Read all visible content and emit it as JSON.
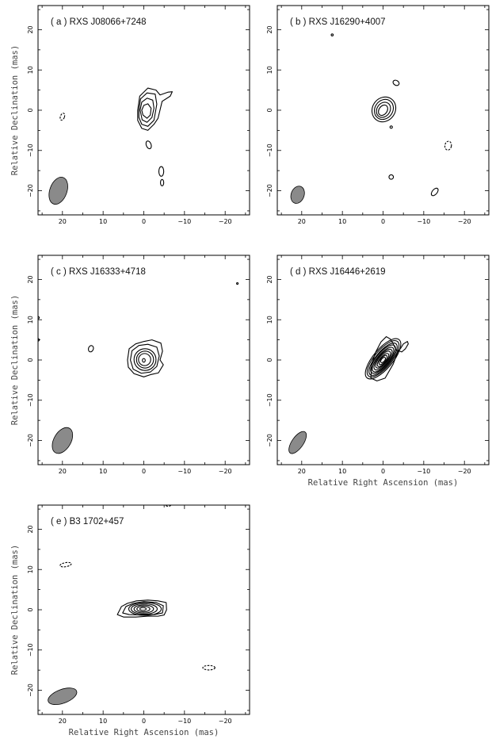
{
  "chart_data": [
    {
      "type": "contour",
      "title": "( a ) RXS J08066+7248",
      "xlabel": "",
      "ylabel": "Relative Declination (mas)",
      "xlim": [
        26,
        -26
      ],
      "ylim": [
        -26,
        26
      ],
      "xticks": [
        20,
        10,
        0,
        -10,
        -20
      ],
      "yticks": [
        -20,
        -10,
        0,
        10,
        20
      ],
      "beam": {
        "x": 21,
        "y": -20,
        "major": 7,
        "minor": 4.2,
        "pa_deg": 20,
        "color": "#8a8a8a"
      },
      "contours": [
        {
          "sign": "pos",
          "points": [
            [
              1.5,
              0
            ],
            [
              1,
              3.5
            ],
            [
              -1,
              5.5
            ],
            [
              -3,
              5
            ],
            [
              -4,
              3.8
            ],
            [
              -6,
              4.5
            ],
            [
              -7,
              4.6
            ],
            [
              -6.5,
              3.5
            ],
            [
              -4.5,
              2.2
            ],
            [
              -3.5,
              -2
            ],
            [
              -2.5,
              -3.5
            ],
            [
              -1,
              -5
            ],
            [
              0.5,
              -4.5
            ],
            [
              1.5,
              -2.5
            ]
          ]
        },
        {
          "sign": "pos",
          "points": [
            [
              1.2,
              0
            ],
            [
              0.8,
              2.8
            ],
            [
              -0.8,
              4.3
            ],
            [
              -2.8,
              4
            ],
            [
              -3.2,
              1.5
            ],
            [
              -2.5,
              -2.5
            ],
            [
              -1,
              -4
            ],
            [
              0.5,
              -3.5
            ],
            [
              1.2,
              -1.8
            ]
          ]
        },
        {
          "sign": "pos",
          "points": [
            [
              0.9,
              0
            ],
            [
              0.5,
              2
            ],
            [
              -0.8,
              3
            ],
            [
              -2.2,
              2.5
            ],
            [
              -2.5,
              0.5
            ],
            [
              -2,
              -1.8
            ],
            [
              -0.8,
              -3
            ],
            [
              0.4,
              -2.4
            ]
          ]
        },
        {
          "sign": "pos",
          "points": [
            [
              0.5,
              0
            ],
            [
              0,
              1.2
            ],
            [
              -1,
              1.6
            ],
            [
              -1.8,
              0.5
            ],
            [
              -1.6,
              -1.2
            ],
            [
              -0.8,
              -2
            ],
            [
              0.2,
              -1.2
            ]
          ]
        },
        {
          "sign": "pos",
          "cx": -1.2,
          "cy": -8.6,
          "rx": 0.6,
          "ry": 1.0,
          "rot": -20
        },
        {
          "sign": "pos",
          "cx": -4.3,
          "cy": -15.2,
          "rx": 0.6,
          "ry": 1.2,
          "rot": 0
        },
        {
          "sign": "pos",
          "cx": -4.5,
          "cy": -18,
          "rx": 0.4,
          "ry": 0.8,
          "rot": 0
        },
        {
          "sign": "neg",
          "cx": 20,
          "cy": -1.6,
          "rx": 0.5,
          "ry": 0.9,
          "rot": 20
        }
      ]
    },
    {
      "type": "contour",
      "title": "( b ) RXS J16290+4007",
      "xlabel": "",
      "ylabel": "",
      "xlim": [
        26,
        -26
      ],
      "ylim": [
        -26,
        26
      ],
      "xticks": [
        20,
        10,
        0,
        -10,
        -20
      ],
      "yticks": [
        -20,
        -10,
        0,
        10,
        20
      ],
      "beam": {
        "x": 21,
        "y": -21,
        "major": 4.4,
        "minor": 3.2,
        "pa_deg": 20,
        "color": "#8a8a8a"
      },
      "contours": [
        {
          "sign": "pos",
          "cx": -0.2,
          "cy": 0.2,
          "rx": 2.8,
          "ry": 3.2,
          "rot": 35
        },
        {
          "sign": "pos",
          "cx": -0.2,
          "cy": 0.2,
          "rx": 2.2,
          "ry": 2.6,
          "rot": 35
        },
        {
          "sign": "pos",
          "cx": -0.1,
          "cy": 0.1,
          "rx": 1.6,
          "ry": 2.0,
          "rot": 35
        },
        {
          "sign": "pos",
          "cx": 0,
          "cy": 0,
          "rx": 1.0,
          "ry": 1.4,
          "rot": 35
        },
        {
          "sign": "pos",
          "cx": -3.2,
          "cy": 6.8,
          "rx": 0.8,
          "ry": 0.6,
          "rot": 30
        },
        {
          "sign": "pos",
          "cx": -2,
          "cy": -4.2,
          "rx": 0.3,
          "ry": 0.3,
          "rot": 0
        },
        {
          "sign": "pos",
          "cx": -2,
          "cy": -16.6,
          "rx": 0.55,
          "ry": 0.55,
          "rot": 0
        },
        {
          "sign": "pos",
          "cx": -12.7,
          "cy": -20.3,
          "rx": 0.6,
          "ry": 1.1,
          "rot": 40
        },
        {
          "sign": "pos",
          "cx": 12.5,
          "cy": 18.7,
          "rx": 0.25,
          "ry": 0.25,
          "rot": 0
        },
        {
          "sign": "neg",
          "cx": -16,
          "cy": -8.8,
          "rx": 0.8,
          "ry": 1.1,
          "rot": 10
        }
      ]
    },
    {
      "type": "contour",
      "title": "( c ) RXS J16333+4718",
      "xlabel": "",
      "ylabel": "Relative Declination (mas)",
      "xlim": [
        26,
        -26
      ],
      "ylim": [
        -26,
        26
      ],
      "xticks": [
        20,
        10,
        0,
        -10,
        -20
      ],
      "yticks": [
        -20,
        -10,
        0,
        10,
        20
      ],
      "beam": {
        "x": 20,
        "y": -20,
        "major": 7,
        "minor": 4.2,
        "pa_deg": 30,
        "color": "#8a8a8a"
      },
      "contours": [
        {
          "sign": "pos",
          "points": [
            [
              4,
              0
            ],
            [
              3.6,
              2.8
            ],
            [
              2,
              4
            ],
            [
              0,
              4.6
            ],
            [
              -2,
              5
            ],
            [
              -4.2,
              4.2
            ],
            [
              -4.6,
              2.2
            ],
            [
              -4,
              0
            ],
            [
              -4.8,
              -1.2
            ],
            [
              -3.6,
              -3.2
            ],
            [
              -1.8,
              -3.6
            ],
            [
              0,
              -4.2
            ],
            [
              2.4,
              -3.4
            ],
            [
              3.8,
              -1.8
            ]
          ]
        },
        {
          "sign": "pos",
          "points": [
            [
              3.3,
              0
            ],
            [
              2.9,
              2.3
            ],
            [
              1.2,
              3.6
            ],
            [
              -1,
              3.9
            ],
            [
              -3.2,
              3.2
            ],
            [
              -3.8,
              1
            ],
            [
              -3.2,
              -1.6
            ],
            [
              -1.6,
              -3
            ],
            [
              0.6,
              -3.3
            ],
            [
              2.6,
              -2.3
            ]
          ]
        },
        {
          "sign": "pos",
          "cx": -0.3,
          "cy": 0.1,
          "rx": 2.7,
          "ry": 2.7,
          "rot": 0
        },
        {
          "sign": "pos",
          "cx": -0.3,
          "cy": 0.1,
          "rx": 2.1,
          "ry": 2.1,
          "rot": 0
        },
        {
          "sign": "pos",
          "cx": -0.2,
          "cy": 0.1,
          "rx": 1.5,
          "ry": 1.5,
          "rot": 0
        },
        {
          "sign": "pos",
          "cx": 0,
          "cy": -0.1,
          "rx": 0.35,
          "ry": 0.45,
          "rot": 0
        },
        {
          "sign": "pos",
          "cx": 13,
          "cy": 2.8,
          "rx": 0.6,
          "ry": 0.8,
          "rot": 20
        },
        {
          "sign": "pos",
          "cx": -23,
          "cy": 19,
          "rx": 0.2,
          "ry": 0.2,
          "rot": 0
        },
        {
          "sign": "pos",
          "cx": 26,
          "cy": 10.5,
          "rx": 0.3,
          "ry": 0.3,
          "rot": 0
        },
        {
          "sign": "pos",
          "cx": 26,
          "cy": 5,
          "rx": 0.3,
          "ry": 0.3,
          "rot": 0
        }
      ]
    },
    {
      "type": "contour",
      "title": "( d ) RXS J16446+2619",
      "xlabel": "Relative Right Ascension (mas)",
      "ylabel": "",
      "xlim": [
        26,
        -26
      ],
      "ylim": [
        -26,
        26
      ],
      "xticks": [
        20,
        10,
        0,
        -10,
        -20
      ],
      "yticks": [
        -20,
        -10,
        0,
        10,
        20
      ],
      "beam": {
        "x": 21,
        "y": -20.5,
        "major": 6.4,
        "minor": 2.8,
        "pa_deg": 35,
        "color": "#8a8a8a"
      },
      "contours": [
        {
          "sign": "pos",
          "points": [
            [
              3,
              -4.5
            ],
            [
              1.5,
              -5.2
            ],
            [
              -0.5,
              -4.5
            ],
            [
              -2.5,
              -1
            ],
            [
              -3.6,
              2
            ],
            [
              -4.4,
              3
            ],
            [
              -5,
              4
            ],
            [
              -6,
              4.6
            ],
            [
              -6.2,
              4
            ],
            [
              -5.5,
              2.8
            ],
            [
              -4.6,
              2
            ],
            [
              -3.2,
              2.5
            ],
            [
              -2.4,
              4.2
            ],
            [
              -1.8,
              5.2
            ],
            [
              -0.8,
              5.8
            ],
            [
              0.5,
              4.5
            ],
            [
              1.8,
              2
            ],
            [
              2.8,
              -1
            ]
          ]
        },
        {
          "sign": "pos",
          "cx": 0,
          "cy": 0.3,
          "rx": 2.4,
          "ry": 6.2,
          "rot": 40
        },
        {
          "sign": "pos",
          "cx": 0,
          "cy": 0.3,
          "rx": 2.1,
          "ry": 5.6,
          "rot": 40
        },
        {
          "sign": "pos",
          "cx": 0,
          "cy": 0.2,
          "rx": 1.8,
          "ry": 5.0,
          "rot": 40
        },
        {
          "sign": "pos",
          "cx": 0,
          "cy": 0.2,
          "rx": 1.6,
          "ry": 4.4,
          "rot": 40
        },
        {
          "sign": "pos",
          "cx": 0,
          "cy": 0.1,
          "rx": 1.4,
          "ry": 3.8,
          "rot": 40
        },
        {
          "sign": "pos",
          "cx": 0,
          "cy": 0.1,
          "rx": 1.2,
          "ry": 3.2,
          "rot": 40
        },
        {
          "sign": "pos",
          "cx": 0,
          "cy": 0.1,
          "rx": 1.0,
          "ry": 2.6,
          "rot": 40
        },
        {
          "sign": "pos",
          "cx": 0,
          "cy": 0,
          "rx": 0.8,
          "ry": 2.0,
          "rot": 40
        },
        {
          "sign": "pos",
          "cx": 0,
          "cy": 0,
          "rx": 0.6,
          "ry": 1.4,
          "rot": 40
        },
        {
          "sign": "pos",
          "cx": 0,
          "cy": 0,
          "rx": 0.4,
          "ry": 0.8,
          "rot": 40
        }
      ]
    },
    {
      "type": "contour",
      "title": "( e ) B3 1702+457",
      "xlabel": "Relative Right Ascension (mas)",
      "ylabel": "Relative Declination (mas)",
      "xlim": [
        26,
        -26
      ],
      "ylim": [
        -26,
        26
      ],
      "xticks": [
        20,
        10,
        0,
        -10,
        -20
      ],
      "yticks": [
        -20,
        -10,
        0,
        10,
        20
      ],
      "beam": {
        "x": 20,
        "y": -21.5,
        "major": 7.5,
        "minor": 3.4,
        "pa_deg": 70,
        "color": "#8a8a8a"
      },
      "contours": [
        {
          "sign": "pos",
          "points": [
            [
              6.5,
              -1.2
            ],
            [
              5.5,
              0.8
            ],
            [
              4,
              1.6
            ],
            [
              1.8,
              2.2
            ],
            [
              -1,
              2.4
            ],
            [
              -3.5,
              2.2
            ],
            [
              -5.5,
              1.8
            ],
            [
              -5.6,
              0
            ],
            [
              -5,
              -1.3
            ],
            [
              -3.5,
              -1.6
            ],
            [
              -1,
              -1.6
            ],
            [
              2,
              -1.8
            ],
            [
              5,
              -1.8
            ]
          ]
        },
        {
          "sign": "pos",
          "points": [
            [
              5.2,
              -0.8
            ],
            [
              4.4,
              0.8
            ],
            [
              2.6,
              1.6
            ],
            [
              0,
              2
            ],
            [
              -3,
              1.8
            ],
            [
              -4.8,
              1
            ],
            [
              -4.6,
              -0.8
            ],
            [
              -2.6,
              -1.2
            ],
            [
              0.6,
              -1.3
            ],
            [
              3.6,
              -1.2
            ]
          ]
        },
        {
          "sign": "pos",
          "cx": -0.3,
          "cy": 0.2,
          "rx": 4.0,
          "ry": 1.6,
          "rot": 0
        },
        {
          "sign": "pos",
          "cx": -0.1,
          "cy": 0.2,
          "rx": 3.2,
          "ry": 1.3,
          "rot": 0
        },
        {
          "sign": "pos",
          "cx": 0,
          "cy": 0.2,
          "rx": 2.4,
          "ry": 1.0,
          "rot": 0
        },
        {
          "sign": "pos",
          "cx": 0.1,
          "cy": 0.2,
          "rx": 1.6,
          "ry": 0.7,
          "rot": 0
        },
        {
          "sign": "pos",
          "cx": 0.2,
          "cy": 0.2,
          "rx": 0.8,
          "ry": 0.35,
          "rot": 0
        },
        {
          "sign": "neg",
          "cx": 19.2,
          "cy": 11.2,
          "rx": 1.4,
          "ry": 0.5,
          "rot": -10
        },
        {
          "sign": "neg",
          "cx": -16,
          "cy": -14.4,
          "rx": 1.5,
          "ry": 0.55,
          "rot": 0
        },
        {
          "sign": "neg",
          "cx": -6,
          "cy": 26,
          "rx": 0.6,
          "ry": 0.3,
          "rot": 0
        }
      ]
    }
  ]
}
